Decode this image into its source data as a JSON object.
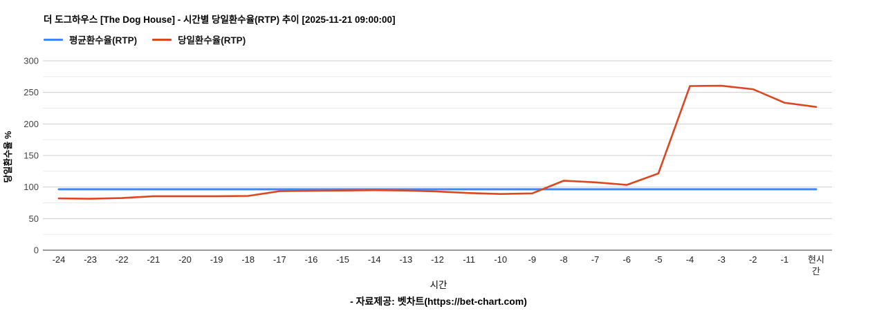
{
  "header": {
    "title": "더 도그하우스 [The Dog House] - 시간별 당일환수율(RTP) 추이 [2025-11-21 09:00:00]",
    "legend_labels": {
      "average": "평균환수율(RTP)",
      "daily": "당일환수율(RTP)"
    }
  },
  "chart_data": {
    "type": "line",
    "title": "더 도그하우스 [The Dog House] - 시간별 당일환수율(RTP) 추이 [2025-11-21 09:00:00]",
    "xlabel": "시간",
    "ylabel": "당일환수율 %",
    "categories": [
      "-24",
      "-23",
      "-22",
      "-21",
      "-20",
      "-19",
      "-18",
      "-17",
      "-16",
      "-15",
      "-14",
      "-13",
      "-12",
      "-11",
      "-10",
      "-9",
      "-8",
      "-7",
      "-6",
      "-5",
      "-4",
      "-3",
      "-2",
      "-1",
      "현시간"
    ],
    "series": [
      {
        "name": "평균환수율(RTP)",
        "color": "#4285F4",
        "values": [
          96.5,
          96.5,
          96.5,
          96.5,
          96.5,
          96.5,
          96.5,
          96.5,
          96.5,
          96.5,
          96.5,
          96.5,
          96.5,
          96.5,
          96.5,
          96.5,
          96.5,
          96.5,
          96.5,
          96.5,
          96.5,
          96.5,
          96.5,
          96.5,
          96.5
        ]
      },
      {
        "name": "당일환수율(RTP)",
        "color": "#DE461F",
        "values": [
          82,
          81.5,
          82.5,
          85.5,
          85.5,
          85.5,
          86,
          93.5,
          94,
          94.5,
          95,
          94.5,
          93,
          90.5,
          89,
          90,
          110,
          107.5,
          103.5,
          121.5,
          260,
          260.5,
          255,
          233.5,
          227
        ]
      }
    ],
    "ylim": [
      0,
      300
    ],
    "yticks": [
      0,
      50,
      100,
      150,
      200,
      250,
      300
    ],
    "minor_tick_step": 25,
    "grid": true,
    "legend_position": "top-left",
    "gridline_color": "#cccccc",
    "minor_gridline_color": "#ebebeb",
    "baseline_color": "#333333"
  },
  "footer": {
    "source": "- 자료제공: 벳차트(https://bet-chart.com)"
  }
}
